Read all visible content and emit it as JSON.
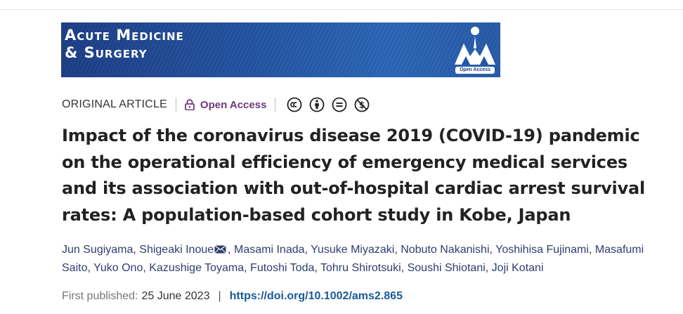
{
  "journal": {
    "name_line1": "Acute Medicine",
    "name_line2": "& Surgery",
    "logo_badge": "Open Access",
    "banner_color": "#2355a2"
  },
  "meta": {
    "article_type": "ORIGINAL ARTICLE",
    "access_label": "Open Access",
    "license_icons": [
      "creative-commons-icon",
      "attribution-icon",
      "no-derivatives-icon",
      "non-commercial-icon"
    ]
  },
  "title": "Impact of the coronavirus disease 2019 (COVID-19) pandemic on the operational efficiency of emergency medical services and its association with out-of-hospital cardiac arrest survival rates: A population-based cohort study in Kobe, Japan",
  "authors": [
    "Jun Sugiyama",
    "Shigeaki Inoue",
    "Masami Inada",
    "Yusuke Miyazaki",
    "Nobuto Nakanishi",
    "Yoshihisa Fujinami",
    "Masafumi Saito",
    "Yuko Ono",
    "Kazushige Toyama",
    "Futoshi Toda",
    "Tohru Shirotsuki",
    "Soushi Shiotani",
    "Joji Kotani"
  ],
  "corresponding_author_icon": "envelope-icon",
  "publication": {
    "label": "First published:",
    "date": "25 June 2023",
    "separator": "|",
    "doi": "https://doi.org/10.1002/ams2.865"
  },
  "colors": {
    "link": "#1a5a96",
    "author": "#2f3e6e",
    "open_access": "#6e3a7a"
  }
}
